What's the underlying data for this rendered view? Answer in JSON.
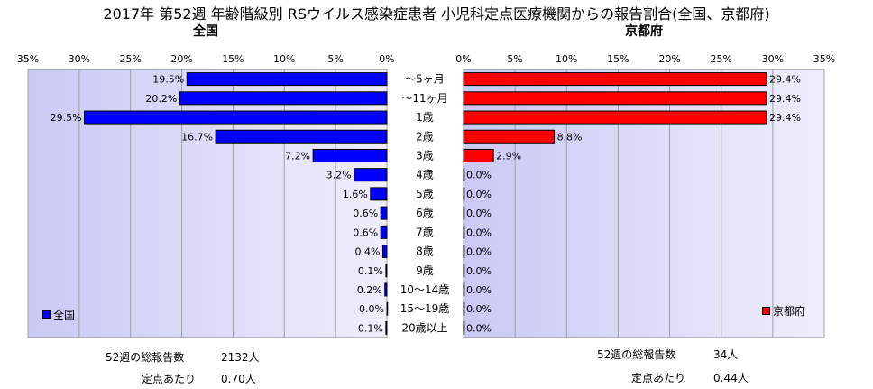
{
  "chart_data": {
    "type": "bar",
    "title": "2017年 第52週 年齢階級別 RSウイルス感染症患者 小児科定点医療機関からの報告割合(全国、京都府)",
    "categories": [
      "～5ヶ月",
      "～11ヶ月",
      "1歳",
      "2歳",
      "3歳",
      "4歳",
      "5歳",
      "6歳",
      "7歳",
      "8歳",
      "9歳",
      "10～14歳",
      "15～19歳",
      "20歳以上"
    ],
    "xlim": [
      0,
      35
    ],
    "xticks": [
      "0%",
      "5%",
      "10%",
      "15%",
      "20%",
      "25%",
      "30%",
      "35%"
    ],
    "series": [
      {
        "name": "全国",
        "panel_title": "全国",
        "color": "#0000ff",
        "values": [
          19.5,
          20.2,
          29.5,
          16.7,
          7.2,
          3.2,
          1.6,
          0.6,
          0.6,
          0.4,
          0.1,
          0.2,
          0.0,
          0.1
        ],
        "value_labels": [
          "19.5%",
          "20.2%",
          "29.5%",
          "16.7%",
          "7.2%",
          "3.2%",
          "1.6%",
          "0.6%",
          "0.6%",
          "0.4%",
          "0.1%",
          "0.2%",
          "0.0%",
          "0.1%"
        ],
        "stats": {
          "total_label": "52週の総報告数",
          "total_value": "2132人",
          "per_site_label": "定点あたり",
          "per_site_value": "0.70人"
        }
      },
      {
        "name": "京都府",
        "panel_title": "京都府",
        "color": "#ff0000",
        "values": [
          29.4,
          29.4,
          29.4,
          8.8,
          2.9,
          0.0,
          0.0,
          0.0,
          0.0,
          0.0,
          0.0,
          0.0,
          0.0,
          0.0
        ],
        "value_labels": [
          "29.4%",
          "29.4%",
          "29.4%",
          "8.8%",
          "2.9%",
          "0.0%",
          "0.0%",
          "0.0%",
          "0.0%",
          "0.0%",
          "0.0%",
          "0.0%",
          "0.0%",
          "0.0%"
        ],
        "stats": {
          "total_label": "52週の総報告数",
          "total_value": "34人",
          "per_site_label": "定点あたり",
          "per_site_value": "0.44人"
        }
      }
    ],
    "grid": true,
    "legend_position": "bottom-left (全国), bottom-right (京都府)"
  }
}
